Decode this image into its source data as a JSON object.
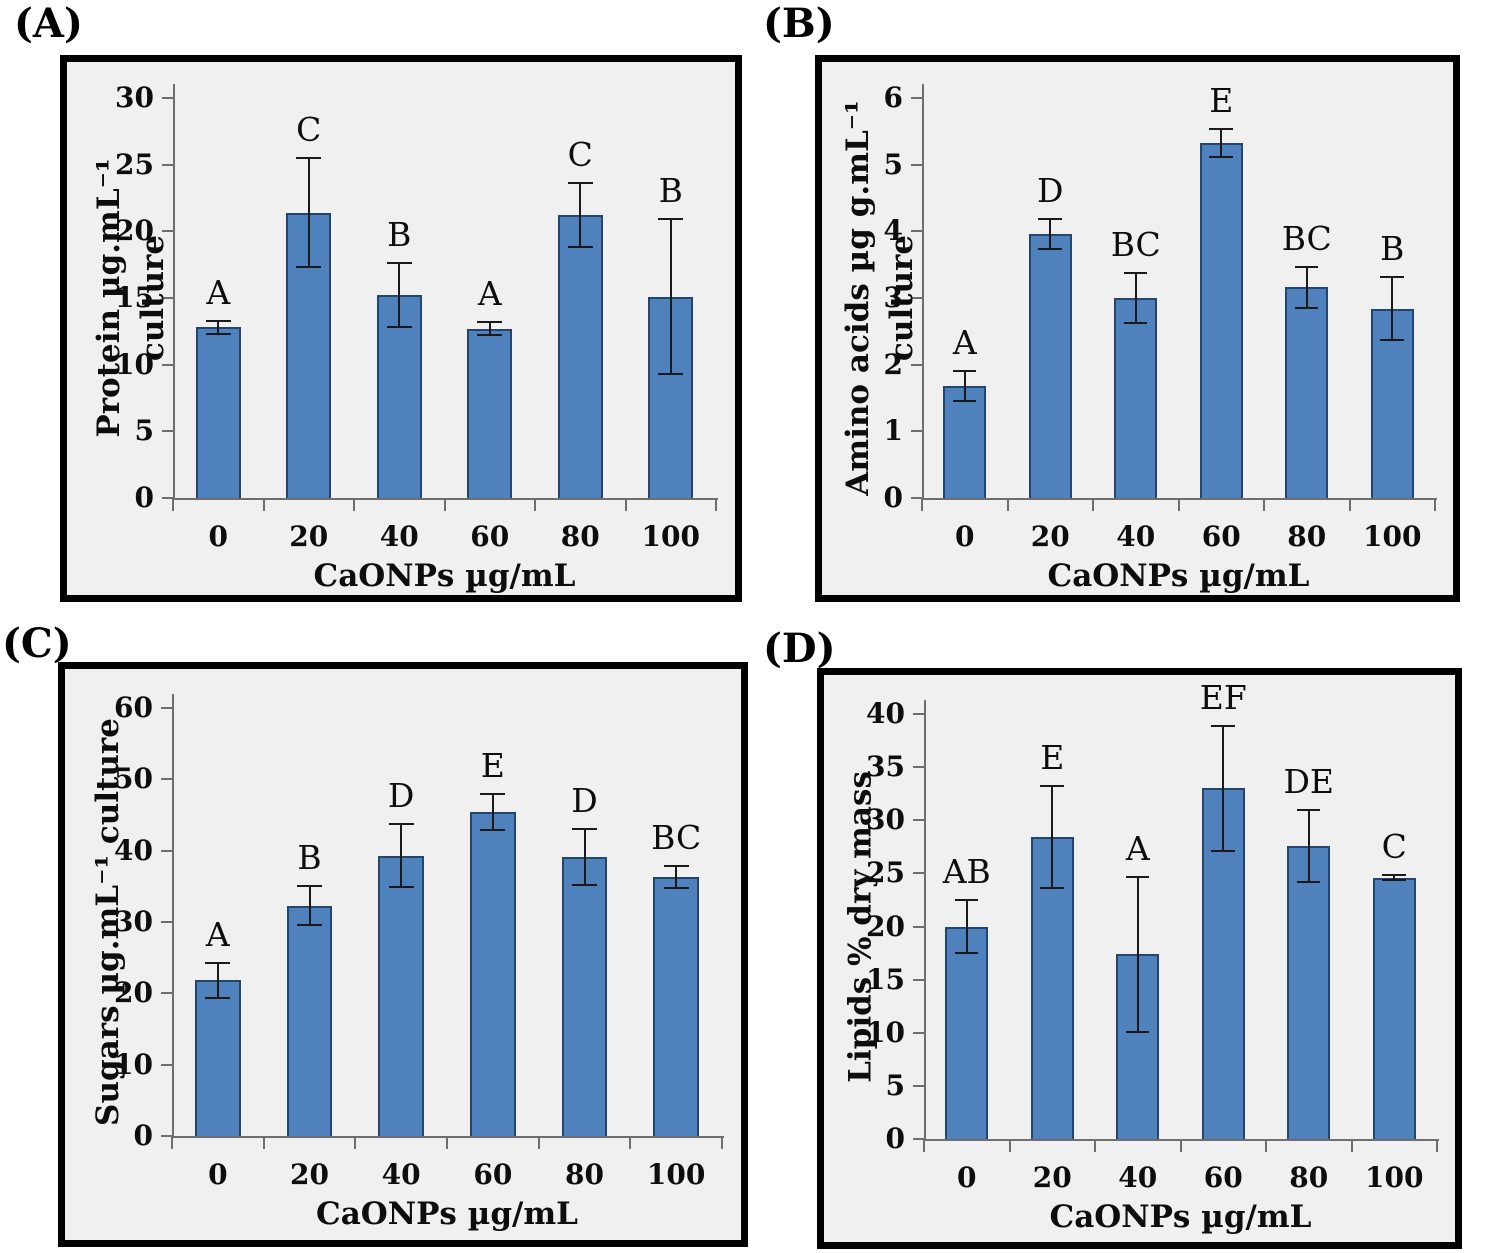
{
  "style": {
    "bar_fill": "#4F81BD",
    "bar_border": "#24466D",
    "plot_bg": "#f1f0f1",
    "panel_border": "#000000",
    "axis_color": "#6e6e6e",
    "error_color": "#1a1a1a",
    "text_color": "#0d0d0d"
  },
  "chart_data": [
    {
      "type": "bar",
      "panel_label": "(A)",
      "xlabel": "CaONPs µg/mL",
      "ylabel": "Protein µg.mL⁻¹ culture",
      "categories": [
        "0",
        "20",
        "40",
        "60",
        "80",
        "100"
      ],
      "values": [
        12.8,
        21.4,
        15.2,
        12.7,
        21.2,
        15.1
      ],
      "errors": [
        0.5,
        4.1,
        2.4,
        0.5,
        2.4,
        5.8
      ],
      "sig_letters": [
        "A",
        "C",
        "B",
        "A",
        "C",
        "B"
      ],
      "ylim": [
        0,
        30
      ],
      "ytick_step": 5,
      "grid": false,
      "legend": null
    },
    {
      "type": "bar",
      "panel_label": "(B)",
      "xlabel": "CaONPs µg/mL",
      "ylabel": "Amino acids µg g.mL⁻¹ culture",
      "categories": [
        "0",
        "20",
        "40",
        "60",
        "80",
        "100"
      ],
      "values": [
        1.68,
        3.96,
        3.0,
        5.32,
        3.16,
        2.84
      ],
      "errors": [
        0.23,
        0.22,
        0.37,
        0.21,
        0.31,
        0.47
      ],
      "sig_letters": [
        "A",
        "D",
        "BC",
        "E",
        "BC",
        "B"
      ],
      "ylim": [
        0,
        6
      ],
      "ytick_step": 1,
      "grid": false,
      "legend": null
    },
    {
      "type": "bar",
      "panel_label": "(C)",
      "xlabel": "CaONPs µg/mL",
      "ylabel": "Sugars µg.mL⁻¹ culture",
      "categories": [
        "0",
        "20",
        "40",
        "60",
        "80",
        "100"
      ],
      "values": [
        21.8,
        32.3,
        39.3,
        45.4,
        39.1,
        36.3
      ],
      "errors": [
        2.5,
        2.7,
        4.4,
        2.5,
        3.9,
        1.5
      ],
      "sig_letters": [
        "A",
        "B",
        "D",
        "E",
        "D",
        "BC"
      ],
      "ylim": [
        0,
        60
      ],
      "ytick_step": 10,
      "grid": false,
      "legend": null
    },
    {
      "type": "bar",
      "panel_label": "(D)",
      "xlabel": "CaONPs µg/mL",
      "ylabel": "Lipids % dry mass",
      "categories": [
        "0",
        "20",
        "40",
        "60",
        "80",
        "100"
      ],
      "values": [
        20.0,
        28.4,
        17.4,
        33.0,
        27.6,
        24.6
      ],
      "errors": [
        2.5,
        4.8,
        7.3,
        5.9,
        3.4,
        0.25
      ],
      "sig_letters": [
        "AB",
        "E",
        "A",
        "EF",
        "DE",
        "C"
      ],
      "ylim": [
        0,
        40
      ],
      "ytick_step": 5,
      "grid": false,
      "legend": null
    }
  ]
}
